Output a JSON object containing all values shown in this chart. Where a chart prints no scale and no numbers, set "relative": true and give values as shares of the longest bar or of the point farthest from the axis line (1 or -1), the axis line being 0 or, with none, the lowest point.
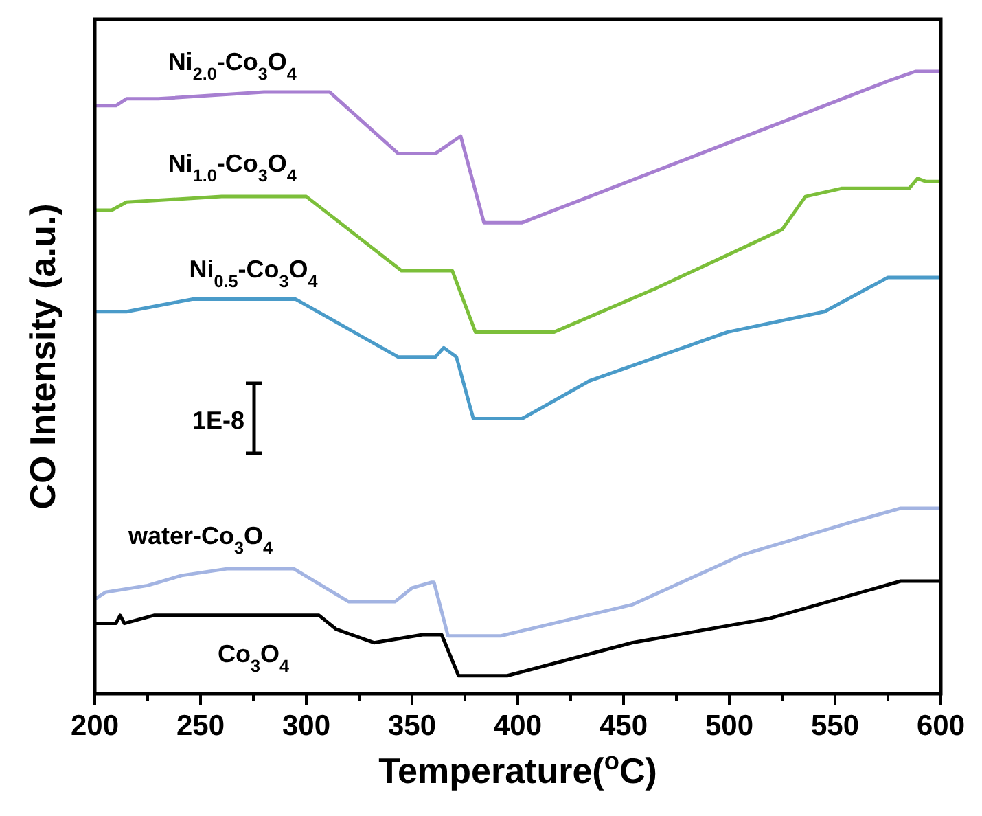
{
  "chart_data": {
    "type": "line",
    "relative": true,
    "xlabel": "Temperature($^{o}$C)",
    "ylabel": "CO Intensity (a.u.)",
    "xlim": [
      200,
      600
    ],
    "xticks": [
      200,
      {
        "value": 225,
        "label": null
      },
      250,
      {
        "value": 275,
        "label": null
      },
      300,
      {
        "value": 325,
        "label": null
      },
      350,
      {
        "value": 375,
        "label": null
      },
      400,
      {
        "value": 425,
        "label": null
      },
      450,
      {
        "value": 475,
        "label": null
      },
      500,
      {
        "value": 525,
        "label": null
      },
      550,
      {
        "value": 575,
        "label": null
      },
      600
    ],
    "grid": false,
    "legend": false,
    "marker": "none",
    "line_style": "solid",
    "annotations": [
      "1E-8"
    ],
    "series": [
      {
        "name": "Ni$_{2.0}$-Co$_{3}$O$_{4}$",
        "color": "#a77fd1",
        "x": [
          200,
          210,
          215,
          230,
          280,
          311,
          343.5,
          361,
          373,
          384,
          402,
          577,
          588,
          600
        ],
        "values": [
          0.945,
          0.945,
          0.956,
          0.956,
          0.967,
          0.967,
          0.868,
          0.868,
          0.896,
          0.757,
          0.757,
          0.987,
          1.0,
          1.0
        ]
      },
      {
        "name": "Ni$_{1.0}$-Co$_{3}$O$_{4}$",
        "color": "#7cbf3a",
        "x": [
          200,
          208,
          215,
          260,
          300,
          345,
          369,
          380,
          417,
          465,
          525,
          536,
          553,
          585,
          589,
          593,
          600
        ],
        "values": [
          0.777,
          0.777,
          0.79,
          0.799,
          0.799,
          0.68,
          0.68,
          0.581,
          0.581,
          0.651,
          0.746,
          0.799,
          0.812,
          0.812,
          0.828,
          0.823,
          0.823
        ]
      },
      {
        "name": "Ni$_{0.5}$-Co$_{3}$O$_{4}$",
        "color": "#4a9bc9",
        "x": [
          200,
          215,
          246,
          295,
          343.5,
          361,
          365,
          371,
          379,
          402,
          434,
          499,
          545,
          575,
          600
        ],
        "values": [
          0.614,
          0.614,
          0.634,
          0.634,
          0.541,
          0.541,
          0.556,
          0.541,
          0.442,
          0.442,
          0.503,
          0.581,
          0.614,
          0.669,
          0.669
        ]
      },
      {
        "name": "water-Co$_{3}$O$_{4}$",
        "color": "#a3b4e2",
        "x": [
          200,
          205,
          225,
          241,
          263,
          294,
          320,
          342,
          350,
          359,
          360.4,
          367,
          392,
          454,
          506,
          558,
          581,
          600
        ],
        "values": [
          0.152,
          0.163,
          0.174,
          0.19,
          0.201,
          0.201,
          0.148,
          0.148,
          0.17,
          0.179,
          0.179,
          0.093,
          0.093,
          0.143,
          0.223,
          0.276,
          0.298,
          0.298
        ]
      },
      {
        "name": "Co$_{3}$O$_{4}$",
        "color": "#000000",
        "x": [
          200,
          210,
          212,
          214,
          228,
          306,
          314,
          332,
          355,
          364,
          372,
          395,
          454,
          519,
          581,
          600
        ],
        "values": [
          0.113,
          0.113,
          0.126,
          0.113,
          0.126,
          0.126,
          0.104,
          0.082,
          0.095,
          0.095,
          0.029,
          0.029,
          0.082,
          0.121,
          0.181,
          0.181
        ]
      }
    ]
  }
}
